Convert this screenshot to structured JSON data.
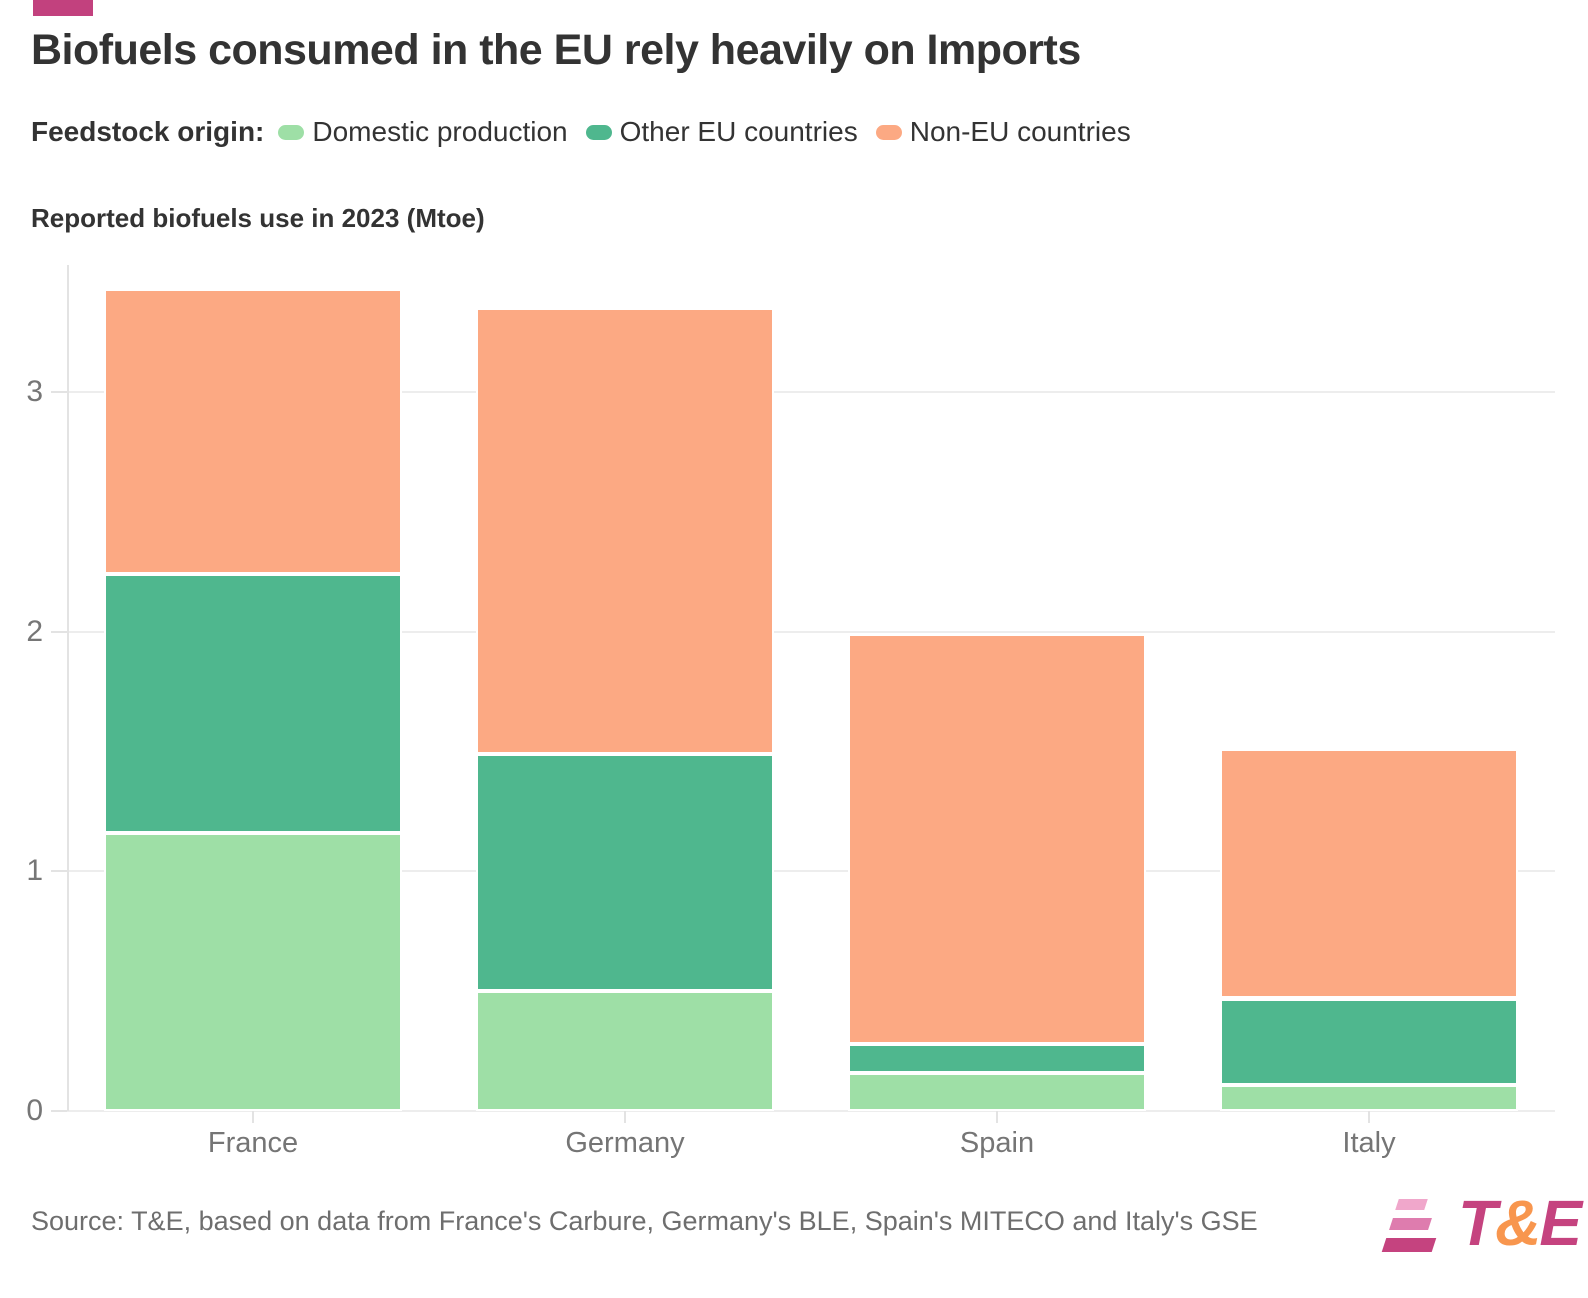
{
  "header": {
    "title": "Biofuels consumed in the EU rely heavily on Imports",
    "brand_bar_color": "#c2417e"
  },
  "legend": {
    "label": "Feedstock origin:",
    "items": [
      {
        "label": "Domestic production",
        "color": "#9edfa6"
      },
      {
        "label": "Other EU countries",
        "color": "#4fb78e"
      },
      {
        "label": "Non-EU countries",
        "color": "#fca983"
      }
    ]
  },
  "chart_data": {
    "type": "bar",
    "stacked": true,
    "title": "Reported biofuels use in 2023 (Mtoe)",
    "xlabel": "",
    "ylabel": "Reported biofuels use (Mtoe)",
    "categories": [
      "France",
      "Germany",
      "Spain",
      "Italy"
    ],
    "series": [
      {
        "name": "Domestic production",
        "color": "#9edfa6",
        "values": [
          1.16,
          0.5,
          0.16,
          0.11
        ]
      },
      {
        "name": "Other EU countries",
        "color": "#4fb78e",
        "values": [
          1.08,
          0.99,
          0.12,
          0.36
        ]
      },
      {
        "name": "Non-EU countries",
        "color": "#fca983",
        "values": [
          1.19,
          1.86,
          1.71,
          1.04
        ]
      }
    ],
    "totals": [
      3.43,
      3.35,
      1.99,
      1.51
    ],
    "y_ticks": [
      0,
      1,
      2,
      3
    ],
    "ylim": [
      0,
      3.53
    ],
    "grid": true,
    "legend_position": "top"
  },
  "footer": {
    "source": "Source: T&E, based on data from France's Carbure, Germany's BLE, Spain's MITECO and Italy's GSE",
    "logo": {
      "t": "T",
      "amp": "&",
      "e": "E"
    },
    "logo_colors": {
      "magenta": "#c5437f",
      "orange": "#f8964e",
      "bar_top": "#f0a7cb",
      "bar_mid": "#de7cae",
      "bar_bottom": "#c5437f"
    }
  }
}
